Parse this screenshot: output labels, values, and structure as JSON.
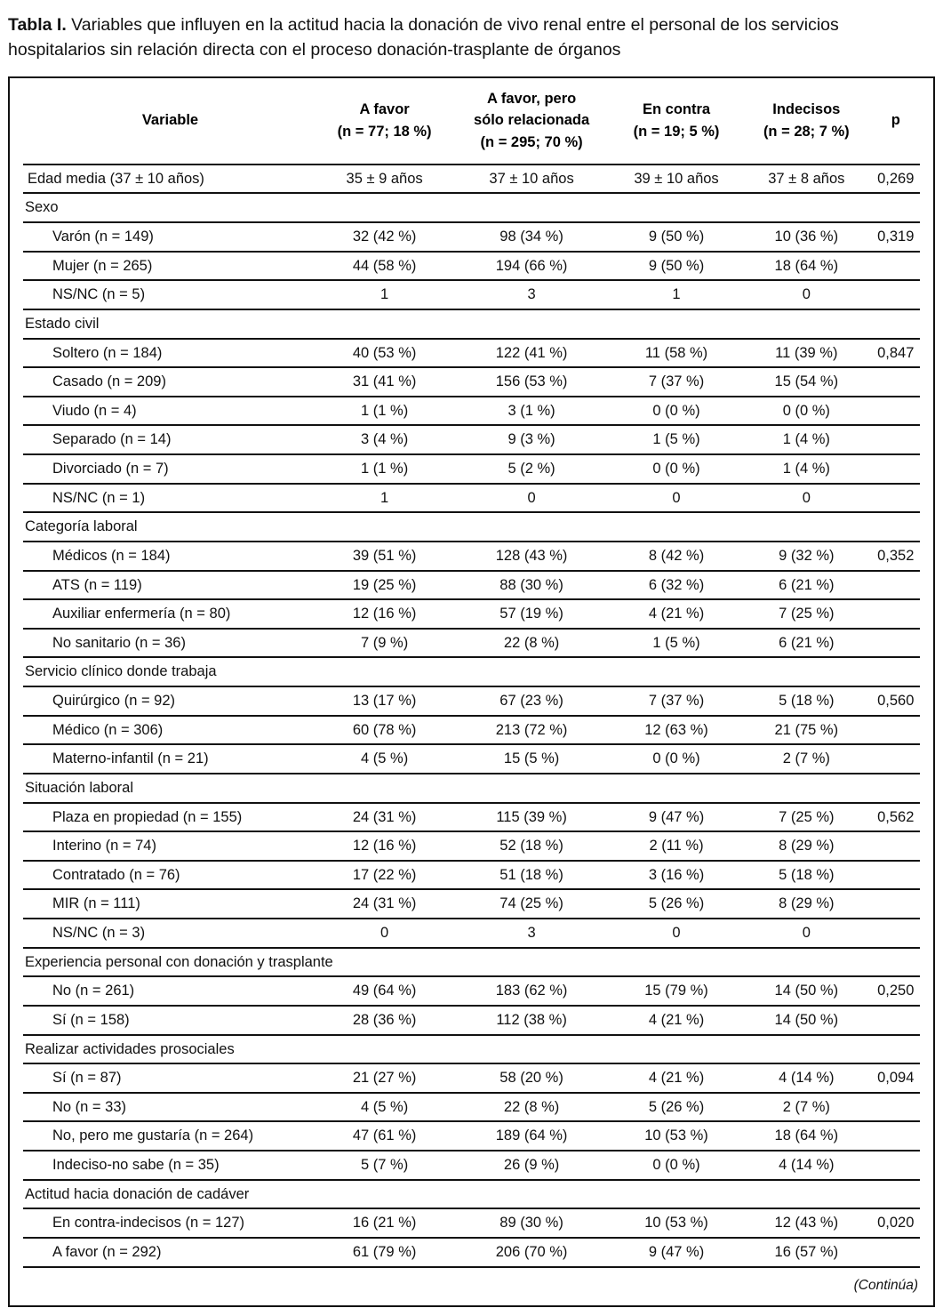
{
  "title": {
    "label": "Tabla I.",
    "text": "Variables que influyen en la actitud hacia la donación de vivo renal entre el personal de los servicios hospitalarios sin relación directa con el proceso donación-trasplante de órganos"
  },
  "footer": {
    "note": "(Continúa)"
  },
  "table": {
    "columns": [
      {
        "id": "variable",
        "lines": [
          "Variable"
        ]
      },
      {
        "id": "a_favor",
        "lines": [
          "A favor",
          "(n = 77; 18 %)"
        ]
      },
      {
        "id": "a_favor_relacionada",
        "lines": [
          "A favor, pero",
          "sólo relacionada",
          "(n = 295; 70 %)"
        ]
      },
      {
        "id": "en_contra",
        "lines": [
          "En contra",
          "(n = 19; 5 %)"
        ]
      },
      {
        "id": "indecisos",
        "lines": [
          "Indecisos",
          "(n = 28; 7 %)"
        ]
      },
      {
        "id": "p",
        "lines": [
          "p"
        ]
      }
    ],
    "rows": [
      {
        "type": "data",
        "indent": false,
        "variable": "Edad media (37 ± 10 años)",
        "cells": [
          "35 ± 9 años",
          "37 ± 10 años",
          "39 ± 10 años",
          "37 ± 8 años"
        ],
        "p": "0,269"
      },
      {
        "type": "section",
        "label": "Sexo"
      },
      {
        "type": "data",
        "indent": true,
        "variable": "Varón (n = 149)",
        "cells": [
          "32 (42 %)",
          "98 (34 %)",
          "9 (50 %)",
          "10 (36 %)"
        ],
        "p": "0,319"
      },
      {
        "type": "data",
        "indent": true,
        "variable": "Mujer (n = 265)",
        "cells": [
          "44 (58 %)",
          "194 (66 %)",
          "9 (50 %)",
          "18 (64 %)"
        ],
        "p": ""
      },
      {
        "type": "data",
        "indent": true,
        "variable": "NS/NC (n = 5)",
        "cells": [
          "1",
          "3",
          "1",
          "0"
        ],
        "p": ""
      },
      {
        "type": "section",
        "label": "Estado civil"
      },
      {
        "type": "data",
        "indent": true,
        "variable": "Soltero (n = 184)",
        "cells": [
          "40 (53 %)",
          "122 (41 %)",
          "11 (58 %)",
          "11 (39 %)"
        ],
        "p": "0,847"
      },
      {
        "type": "data",
        "indent": true,
        "variable": "Casado (n = 209)",
        "cells": [
          "31 (41 %)",
          "156 (53 %)",
          "7 (37 %)",
          "15 (54 %)"
        ],
        "p": ""
      },
      {
        "type": "data",
        "indent": true,
        "variable": "Viudo (n = 4)",
        "cells": [
          "1 (1 %)",
          "3 (1 %)",
          "0 (0 %)",
          "0 (0 %)"
        ],
        "p": ""
      },
      {
        "type": "data",
        "indent": true,
        "variable": "Separado (n = 14)",
        "cells": [
          "3 (4 %)",
          "9 (3 %)",
          "1 (5 %)",
          "1 (4 %)"
        ],
        "p": ""
      },
      {
        "type": "data",
        "indent": true,
        "variable": "Divorciado (n = 7)",
        "cells": [
          "1 (1 %)",
          "5 (2 %)",
          "0 (0 %)",
          "1 (4 %)"
        ],
        "p": ""
      },
      {
        "type": "data",
        "indent": true,
        "variable": "NS/NC (n = 1)",
        "cells": [
          "1",
          "0",
          "0",
          "0"
        ],
        "p": ""
      },
      {
        "type": "section",
        "label": "Categoría laboral"
      },
      {
        "type": "data",
        "indent": true,
        "variable": "Médicos (n = 184)",
        "cells": [
          "39 (51 %)",
          "128 (43 %)",
          "8 (42 %)",
          "9 (32 %)"
        ],
        "p": "0,352"
      },
      {
        "type": "data",
        "indent": true,
        "variable": "ATS (n = 119)",
        "cells": [
          "19 (25 %)",
          "88 (30 %)",
          "6 (32 %)",
          "6 (21 %)"
        ],
        "p": ""
      },
      {
        "type": "data",
        "indent": true,
        "variable": "Auxiliar enfermería (n = 80)",
        "cells": [
          "12 (16 %)",
          "57 (19 %)",
          "4 (21 %)",
          "7 (25 %)"
        ],
        "p": ""
      },
      {
        "type": "data",
        "indent": true,
        "variable": "No sanitario (n = 36)",
        "cells": [
          "7 (9 %)",
          "22 (8 %)",
          "1 (5 %)",
          "6 (21 %)"
        ],
        "p": ""
      },
      {
        "type": "section",
        "label": "Servicio clínico donde trabaja"
      },
      {
        "type": "data",
        "indent": true,
        "variable": "Quirúrgico (n = 92)",
        "cells": [
          "13 (17 %)",
          "67 (23 %)",
          "7 (37 %)",
          "5 (18 %)"
        ],
        "p": "0,560"
      },
      {
        "type": "data",
        "indent": true,
        "variable": "Médico (n = 306)",
        "cells": [
          "60 (78 %)",
          "213 (72 %)",
          "12 (63 %)",
          "21 (75 %)"
        ],
        "p": ""
      },
      {
        "type": "data",
        "indent": true,
        "variable": "Materno-infantil (n = 21)",
        "cells": [
          "4 (5 %)",
          "15 (5 %)",
          "0 (0 %)",
          "2 (7 %)"
        ],
        "p": ""
      },
      {
        "type": "section",
        "label": "Situación laboral"
      },
      {
        "type": "data",
        "indent": true,
        "variable": "Plaza en propiedad (n = 155)",
        "cells": [
          "24 (31 %)",
          "115 (39 %)",
          "9 (47 %)",
          "7 (25 %)"
        ],
        "p": "0,562"
      },
      {
        "type": "data",
        "indent": true,
        "variable": "Interino (n = 74)",
        "cells": [
          "12 (16 %)",
          "52 (18 %)",
          "2 (11 %)",
          "8 (29 %)"
        ],
        "p": ""
      },
      {
        "type": "data",
        "indent": true,
        "variable": "Contratado (n = 76)",
        "cells": [
          "17 (22 %)",
          "51 (18 %)",
          "3 (16 %)",
          "5 (18 %)"
        ],
        "p": ""
      },
      {
        "type": "data",
        "indent": true,
        "variable": "MIR (n = 111)",
        "cells": [
          "24 (31 %)",
          "74 (25 %)",
          "5 (26 %)",
          "8 (29 %)"
        ],
        "p": ""
      },
      {
        "type": "data",
        "indent": true,
        "variable": "NS/NC (n = 3)",
        "cells": [
          "0",
          "3",
          "0",
          "0"
        ],
        "p": ""
      },
      {
        "type": "section",
        "label": "Experiencia personal con donación y trasplante"
      },
      {
        "type": "data",
        "indent": true,
        "variable": "No (n = 261)",
        "cells": [
          "49 (64 %)",
          "183 (62 %)",
          "15 (79 %)",
          "14 (50 %)"
        ],
        "p": "0,250"
      },
      {
        "type": "data",
        "indent": true,
        "variable": "Sí (n = 158)",
        "cells": [
          "28 (36 %)",
          "112 (38 %)",
          "4 (21 %)",
          "14 (50 %)"
        ],
        "p": ""
      },
      {
        "type": "section",
        "label": "Realizar actividades prosociales"
      },
      {
        "type": "data",
        "indent": true,
        "variable": "Sí (n = 87)",
        "cells": [
          "21 (27 %)",
          "58 (20 %)",
          "4 (21 %)",
          "4 (14 %)"
        ],
        "p": "0,094"
      },
      {
        "type": "data",
        "indent": true,
        "variable": "No (n = 33)",
        "cells": [
          "4 (5 %)",
          "22 (8 %)",
          "5 (26 %)",
          "2 (7 %)"
        ],
        "p": ""
      },
      {
        "type": "data",
        "indent": true,
        "variable": "No, pero me gustaría (n = 264)",
        "cells": [
          "47 (61 %)",
          "189 (64 %)",
          "10 (53 %)",
          "18 (64 %)"
        ],
        "p": ""
      },
      {
        "type": "data",
        "indent": true,
        "variable": "Indeciso-no sabe (n = 35)",
        "cells": [
          "5 (7 %)",
          "26 (9 %)",
          "0 (0 %)",
          "4 (14 %)"
        ],
        "p": ""
      },
      {
        "type": "section",
        "label": "Actitud hacia donación de cadáver"
      },
      {
        "type": "data",
        "indent": true,
        "variable": "En contra-indecisos (n = 127)",
        "cells": [
          "16 (21 %)",
          "89 (30 %)",
          "10 (53 %)",
          "12 (43 %)"
        ],
        "p": "0,020"
      },
      {
        "type": "data",
        "indent": true,
        "variable": "A favor (n = 292)",
        "cells": [
          "61 (79 %)",
          "206 (70 %)",
          "9 (47 %)",
          "16 (57 %)"
        ],
        "p": ""
      }
    ]
  }
}
